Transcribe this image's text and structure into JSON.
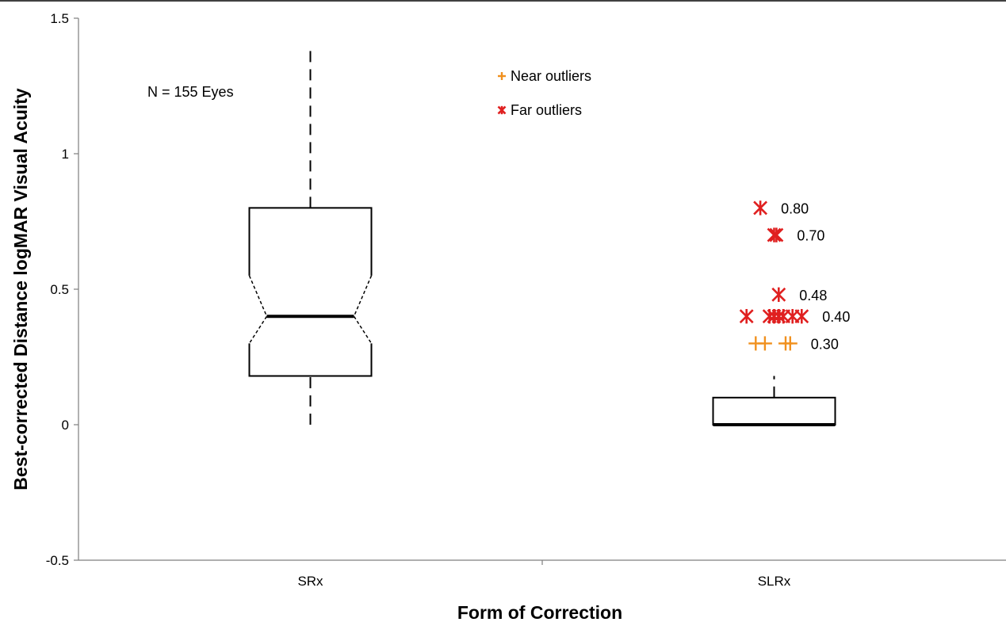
{
  "chart_data": {
    "type": "box",
    "title": "",
    "xlabel": "Form of Correction",
    "ylabel": "Best-corrected Distance logMAR Visual Acuity",
    "ylim": [
      -0.5,
      1.5
    ],
    "yticks": [
      {
        "value": -0.5,
        "label": "-0.5"
      },
      {
        "value": 0,
        "label": "0"
      },
      {
        "value": 0.5,
        "label": "0.5"
      },
      {
        "value": 1,
        "label": "1"
      },
      {
        "value": 1.5,
        "label": "1.5"
      }
    ],
    "categories": [
      "SRx",
      "SLRx"
    ],
    "annotation": "N = 155 Eyes",
    "legend": {
      "placement": "top-center",
      "items": [
        {
          "label": "Near outliers",
          "marker": "plus",
          "color": "#f0901e"
        },
        {
          "label": "Far outliers",
          "marker": "x-star",
          "color": "#e02020"
        }
      ]
    },
    "boxes": [
      {
        "category": "SRx",
        "whisker_low": 0,
        "q1": 0.18,
        "median": 0.4,
        "q3": 0.8,
        "whisker_high": 1.4,
        "notch_low": 0.3,
        "notch_high": 0.55,
        "notched": true
      },
      {
        "category": "SLRx",
        "whisker_low": 0,
        "q1": 0,
        "median": 0,
        "q3": 0.1,
        "whisker_high": 0.18,
        "notched": false
      }
    ],
    "outliers": [
      {
        "category": "SLRx",
        "type": "far",
        "value": 0.8,
        "offsets": [
          -0.03
        ]
      },
      {
        "category": "SLRx",
        "type": "far",
        "value": 0.7,
        "offsets": [
          0.0,
          0.005
        ]
      },
      {
        "category": "SLRx",
        "type": "far",
        "value": 0.48,
        "offsets": [
          0.01
        ]
      },
      {
        "category": "SLRx",
        "type": "far",
        "value": 0.4,
        "offsets": [
          -0.06,
          -0.01,
          0.0,
          0.01,
          0.02,
          0.04,
          0.06
        ]
      },
      {
        "category": "SLRx",
        "type": "near",
        "value": 0.3,
        "offsets": [
          -0.04,
          -0.02,
          0.025,
          0.035
        ]
      }
    ],
    "outlier_labels": [
      {
        "value": 0.8,
        "text": "0.80"
      },
      {
        "value": 0.7,
        "text": "0.70"
      },
      {
        "value": 0.48,
        "text": "0.48"
      },
      {
        "value": 0.4,
        "text": "0.40"
      },
      {
        "value": 0.3,
        "text": "0.30"
      }
    ],
    "colors": {
      "near_outlier": "#f0901e",
      "far_outlier": "#e02020",
      "axis": "#7f7f7f",
      "box": "#000000"
    }
  }
}
